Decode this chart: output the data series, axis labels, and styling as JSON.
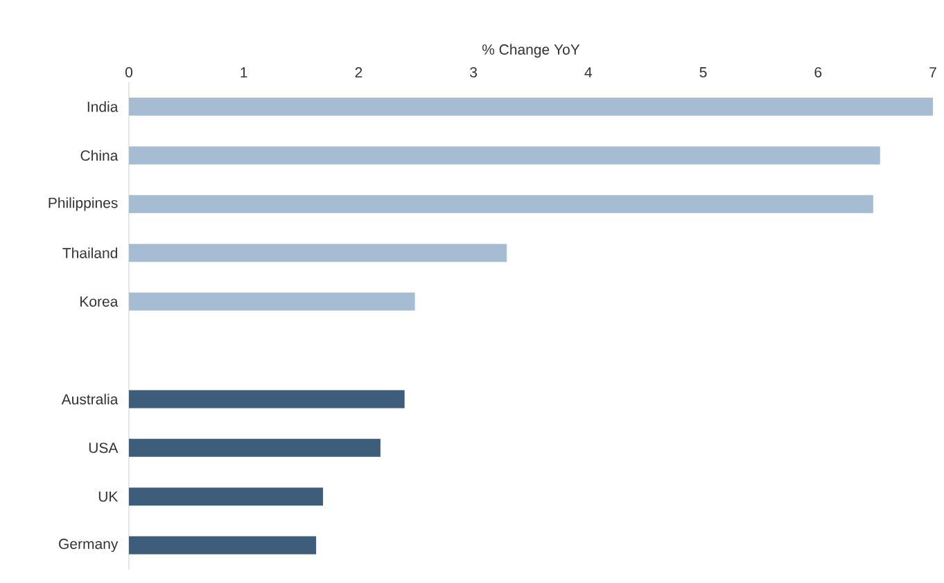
{
  "chart_data": {
    "type": "bar",
    "orientation": "horizontal",
    "xlabel": "% Change YoY",
    "categories": [
      "India",
      "China",
      "Philippines",
      "Thailand",
      "Korea",
      null,
      "Australia",
      "USA",
      "UK",
      "Germany"
    ],
    "values": [
      7.0,
      6.54,
      6.48,
      3.29,
      2.49,
      null,
      2.4,
      2.19,
      1.69,
      1.63
    ],
    "colors": [
      "#a5bcd2",
      "#a5bcd2",
      "#a5bcd2",
      "#a5bcd2",
      "#a5bcd2",
      null,
      "#3e5d7b",
      "#3e5d7b",
      "#3e5d7b",
      "#3e5d7b"
    ],
    "xlim": [
      0,
      7
    ],
    "xticks": [
      0,
      1,
      2,
      3,
      4,
      5,
      6,
      7
    ]
  }
}
